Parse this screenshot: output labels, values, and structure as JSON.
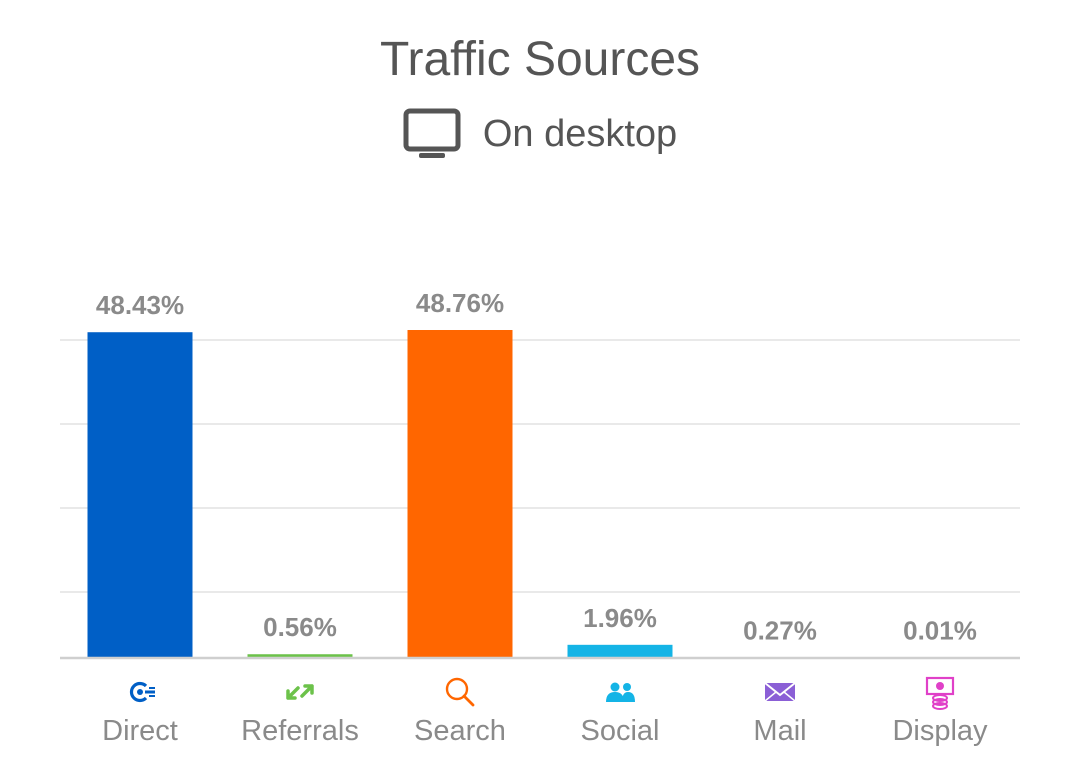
{
  "chart_data": {
    "type": "bar",
    "title": "Traffic Sources",
    "subtitle": "On desktop",
    "categories": [
      "Direct",
      "Referrals",
      "Search",
      "Social",
      "Mail",
      "Display"
    ],
    "values": [
      48.43,
      0.56,
      48.76,
      1.96,
      0.27,
      0.01
    ],
    "value_labels": [
      "48.43%",
      "0.56%",
      "48.76%",
      "1.96%",
      "0.27%",
      "0.01%"
    ],
    "colors": [
      "#005fc6",
      "#6cc24a",
      "#ff6600",
      "#14b4e6",
      "#8b5fd6",
      "#e040c8"
    ],
    "icons": [
      "direct-icon",
      "referrals-icon",
      "search-icon",
      "social-icon",
      "mail-icon",
      "display-icon"
    ],
    "ylim": [
      0,
      48.76
    ],
    "grid": true,
    "legend": "none"
  }
}
